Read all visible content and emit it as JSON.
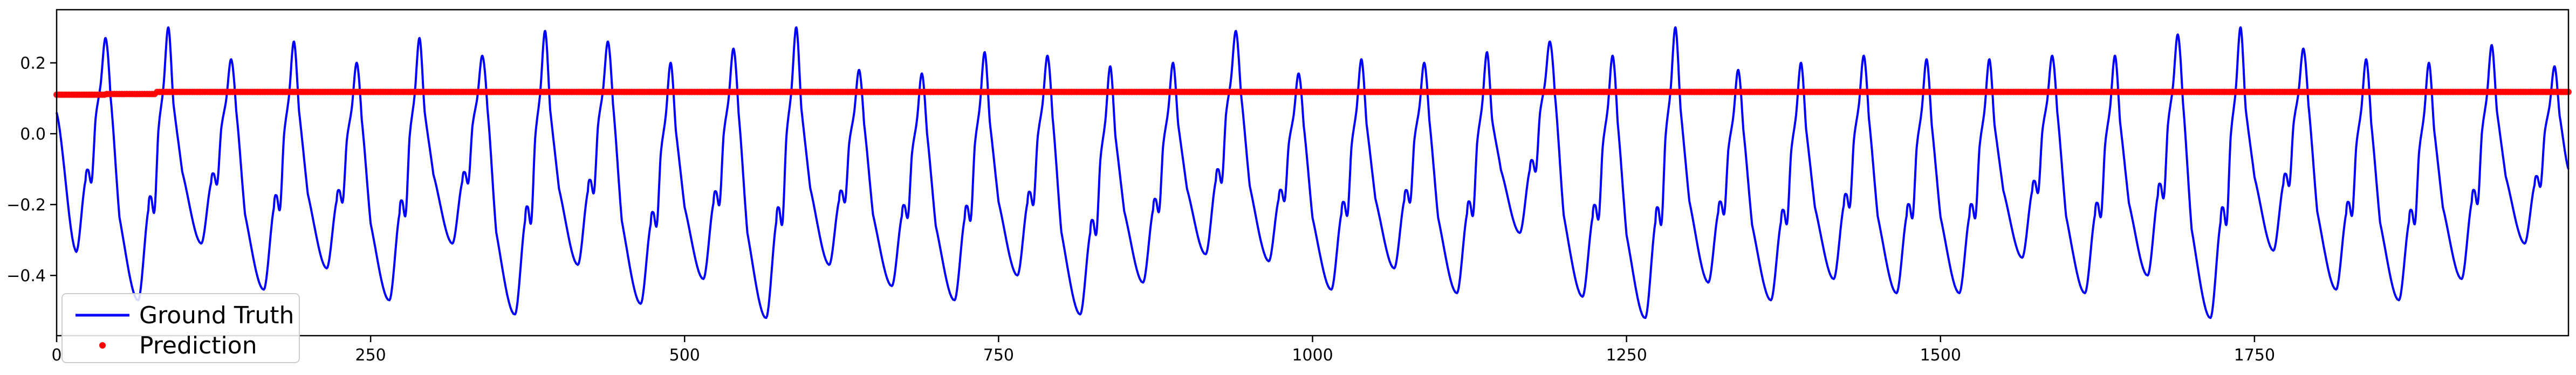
{
  "chart_data": {
    "type": "line",
    "title": "",
    "xlabel": "",
    "ylabel": "",
    "xlim": [
      0,
      2000
    ],
    "ylim": [
      -0.57,
      0.35
    ],
    "x_ticks": [
      {
        "value": 0,
        "label": "0"
      },
      {
        "value": 250,
        "label": "250"
      },
      {
        "value": 500,
        "label": "500"
      },
      {
        "value": 750,
        "label": "750"
      },
      {
        "value": 1000,
        "label": "1000"
      },
      {
        "value": 1250,
        "label": "1250"
      },
      {
        "value": 1500,
        "label": "1500"
      },
      {
        "value": 1750,
        "label": "1750"
      }
    ],
    "y_ticks": [
      {
        "value": 0.2,
        "label": "0.2"
      },
      {
        "value": 0.0,
        "label": "0.0"
      },
      {
        "value": -0.2,
        "label": "−0.2"
      },
      {
        "value": -0.4,
        "label": "−0.4"
      }
    ],
    "grid": false,
    "legend_position": "lower-left",
    "series": [
      {
        "name": "Ground Truth",
        "style": "line",
        "color": "#0000ff",
        "cycle_period": 50,
        "x_start": 0,
        "x_end": 2000,
        "notes_count": 40,
        "start_value": 0.06,
        "end_value": -0.1,
        "cycle_peaks": [
          0.27,
          0.3,
          0.21,
          0.26,
          0.2,
          0.27,
          0.22,
          0.29,
          0.26,
          0.2,
          0.24,
          0.3,
          0.18,
          0.17,
          0.23,
          0.22,
          0.19,
          0.2,
          0.29,
          0.17,
          0.21,
          0.2,
          0.23,
          0.26,
          0.22,
          0.3,
          0.18,
          0.2,
          0.22,
          0.21,
          0.21,
          0.22,
          0.22,
          0.28,
          0.3,
          0.24,
          0.21,
          0.2,
          0.25,
          0.19
        ],
        "cycle_troughs": [
          -0.33,
          -0.47,
          -0.31,
          -0.44,
          -0.38,
          -0.47,
          -0.31,
          -0.51,
          -0.37,
          -0.48,
          -0.41,
          -0.52,
          -0.37,
          -0.43,
          -0.47,
          -0.4,
          -0.51,
          -0.42,
          -0.34,
          -0.36,
          -0.44,
          -0.38,
          -0.45,
          -0.28,
          -0.46,
          -0.52,
          -0.42,
          -0.47,
          -0.41,
          -0.45,
          -0.45,
          -0.35,
          -0.45,
          -0.4,
          -0.52,
          -0.33,
          -0.44,
          -0.47,
          -0.41,
          -0.31
        ]
      },
      {
        "name": "Prediction",
        "style": "points",
        "color": "#ff0000",
        "x_start": 0,
        "x_end": 2000,
        "step": 2,
        "values": [
          0.11,
          0.112,
          0.116,
          0.118,
          0.118
        ]
      }
    ]
  }
}
